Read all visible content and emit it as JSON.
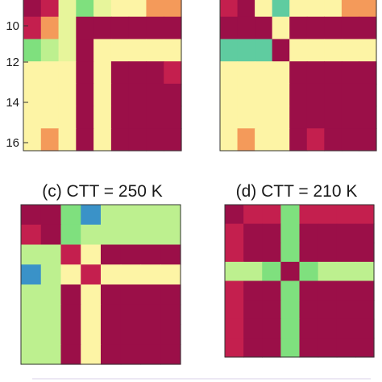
{
  "palette": {
    "dark_red": "#9b0f48",
    "red": "#c41f4e",
    "orange": "#f49a5a",
    "light_yellow": "#fdf4a5",
    "yellow_green": "#e7f59b",
    "light_green": "#bdf08f",
    "green": "#7fe07e",
    "teal": "#5fcca0",
    "blue": "#3a92c8"
  },
  "chart_data": [
    {
      "type": "heatmap",
      "panel": "a",
      "title": "",
      "yticks": [
        "10",
        "12",
        "14",
        "16"
      ],
      "note": "partially visible panel (cropped at top)",
      "rows": [
        [
          "dark_red",
          "red",
          "yellow_green",
          "green",
          "yellow_green",
          "light_yellow",
          "light_yellow",
          "orange",
          "orange"
        ],
        [
          "red",
          "orange",
          "yellow_green",
          "dark_red",
          "dark_red",
          "dark_red",
          "dark_red",
          "dark_red",
          "dark_red"
        ],
        [
          "green",
          "light_green",
          "yellow_green",
          "dark_red",
          "light_yellow",
          "light_yellow",
          "light_yellow",
          "light_yellow",
          "light_yellow"
        ],
        [
          "light_yellow",
          "light_yellow",
          "light_yellow",
          "dark_red",
          "light_yellow",
          "dark_red",
          "dark_red",
          "dark_red",
          "red"
        ],
        [
          "light_yellow",
          "light_yellow",
          "light_yellow",
          "dark_red",
          "light_yellow",
          "dark_red",
          "dark_red",
          "dark_red",
          "dark_red"
        ],
        [
          "light_yellow",
          "light_yellow",
          "light_yellow",
          "dark_red",
          "light_yellow",
          "dark_red",
          "dark_red",
          "dark_red",
          "dark_red"
        ],
        [
          "light_yellow",
          "orange",
          "light_yellow",
          "dark_red",
          "light_yellow",
          "dark_red",
          "dark_red",
          "dark_red",
          "dark_red"
        ]
      ]
    },
    {
      "type": "heatmap",
      "panel": "b",
      "title": "",
      "note": "partially visible panel (cropped at top)",
      "rows": [
        [
          "red",
          "dark_red",
          "light_yellow",
          "teal",
          "light_yellow",
          "light_yellow",
          "light_yellow",
          "orange",
          "orange"
        ],
        [
          "dark_red",
          "dark_red",
          "dark_red",
          "light_yellow",
          "dark_red",
          "dark_red",
          "dark_red",
          "dark_red",
          "dark_red"
        ],
        [
          "teal",
          "teal",
          "teal",
          "dark_red",
          "light_yellow",
          "light_yellow",
          "light_yellow",
          "light_yellow",
          "light_yellow"
        ],
        [
          "light_yellow",
          "light_yellow",
          "light_yellow",
          "light_yellow",
          "dark_red",
          "dark_red",
          "dark_red",
          "dark_red",
          "dark_red"
        ],
        [
          "light_yellow",
          "light_yellow",
          "light_yellow",
          "light_yellow",
          "dark_red",
          "dark_red",
          "dark_red",
          "dark_red",
          "dark_red"
        ],
        [
          "light_yellow",
          "light_yellow",
          "light_yellow",
          "light_yellow",
          "dark_red",
          "dark_red",
          "dark_red",
          "dark_red",
          "dark_red"
        ],
        [
          "light_yellow",
          "orange",
          "light_yellow",
          "light_yellow",
          "dark_red",
          "red",
          "dark_red",
          "dark_red",
          "dark_red"
        ]
      ]
    },
    {
      "type": "heatmap",
      "panel": "c",
      "title": "(c) CTT = 250 K",
      "rows": [
        [
          "dark_red",
          "dark_red",
          "green",
          "blue",
          "light_green",
          "light_green",
          "light_green",
          "light_green"
        ],
        [
          "red",
          "dark_red",
          "green",
          "light_green",
          "light_green",
          "light_green",
          "light_green",
          "light_green"
        ],
        [
          "light_green",
          "light_green",
          "red",
          "light_yellow",
          "dark_red",
          "dark_red",
          "dark_red",
          "dark_red"
        ],
        [
          "blue",
          "light_green",
          "light_yellow",
          "red",
          "light_yellow",
          "light_yellow",
          "light_yellow",
          "light_yellow"
        ],
        [
          "light_green",
          "light_green",
          "dark_red",
          "light_yellow",
          "dark_red",
          "dark_red",
          "dark_red",
          "dark_red"
        ],
        [
          "light_green",
          "light_green",
          "dark_red",
          "light_yellow",
          "dark_red",
          "dark_red",
          "dark_red",
          "dark_red"
        ],
        [
          "light_green",
          "light_green",
          "dark_red",
          "light_yellow",
          "dark_red",
          "dark_red",
          "dark_red",
          "dark_red"
        ],
        [
          "light_green",
          "light_green",
          "dark_red",
          "light_yellow",
          "dark_red",
          "dark_red",
          "dark_red",
          "dark_red"
        ]
      ]
    },
    {
      "type": "heatmap",
      "panel": "d",
      "title": "(d) CTT = 210 K",
      "rows": [
        [
          "dark_red",
          "red",
          "red",
          "green",
          "red",
          "red",
          "red",
          "red"
        ],
        [
          "red",
          "dark_red",
          "dark_red",
          "green",
          "dark_red",
          "dark_red",
          "dark_red",
          "dark_red"
        ],
        [
          "red",
          "dark_red",
          "dark_red",
          "green",
          "dark_red",
          "dark_red",
          "dark_red",
          "dark_red"
        ],
        [
          "light_green",
          "light_green",
          "green",
          "dark_red",
          "green",
          "light_green",
          "light_green",
          "light_green"
        ],
        [
          "red",
          "dark_red",
          "dark_red",
          "green",
          "dark_red",
          "dark_red",
          "dark_red",
          "dark_red"
        ],
        [
          "red",
          "dark_red",
          "dark_red",
          "green",
          "dark_red",
          "dark_red",
          "dark_red",
          "dark_red"
        ],
        [
          "red",
          "dark_red",
          "dark_red",
          "green",
          "dark_red",
          "dark_red",
          "dark_red",
          "dark_red"
        ],
        [
          "red",
          "dark_red",
          "dark_red",
          "green",
          "dark_red",
          "dark_red",
          "dark_red",
          "dark_red"
        ]
      ]
    }
  ]
}
